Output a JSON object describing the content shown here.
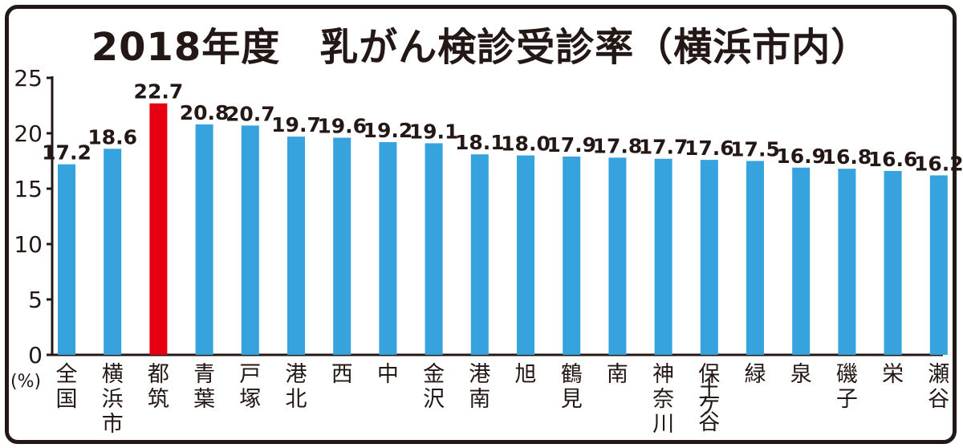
{
  "chart_data": {
    "type": "bar",
    "title": "2018年度　乳がん検診受診率（横浜市内）",
    "ylabel": "(%)",
    "ylim": [
      0,
      25
    ],
    "yticks": [
      0,
      5,
      10,
      15,
      20,
      25
    ],
    "grid": false,
    "categories": [
      "全国",
      "横浜市",
      "都筑",
      "青葉",
      "戸塚",
      "港北",
      "西",
      "中",
      "金沢",
      "港南",
      "旭",
      "鶴見",
      "南",
      "神奈川",
      "保土ケ谷",
      "緑",
      "泉",
      "磯子",
      "栄",
      "瀬谷"
    ],
    "values": [
      17.2,
      18.6,
      22.7,
      20.8,
      20.7,
      19.7,
      19.6,
      19.2,
      19.1,
      18.1,
      18.0,
      17.9,
      17.8,
      17.7,
      17.6,
      17.5,
      16.9,
      16.8,
      16.6,
      16.2
    ],
    "value_labels": [
      "17.2",
      "18.6",
      "22.7",
      "20.8",
      "20.7",
      "19.7",
      "19.6",
      "19.2",
      "19.1",
      "18.1",
      "18.0",
      "17.9",
      "17.8",
      "17.7",
      "17.6",
      "17.5",
      "16.9",
      "16.8",
      "16.6",
      "16.2"
    ],
    "highlight_index": 2,
    "colors": {
      "bar": "#36a2de",
      "highlight": "#e60012",
      "text": "#231815"
    }
  }
}
